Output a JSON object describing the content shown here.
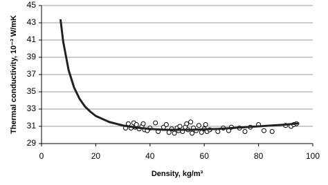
{
  "chart_data": {
    "type": "scatter",
    "xlabel": "Density, kg/m³",
    "ylabel": "Thermal conductivity, 10⁻³ W/mK",
    "xlim": [
      0,
      100
    ],
    "xticks": [
      0,
      20,
      40,
      60,
      80,
      100
    ],
    "ylim": [
      29,
      45
    ],
    "yticks": [
      29,
      31,
      33,
      35,
      37,
      39,
      41,
      43,
      45
    ],
    "grid": true,
    "series": [
      {
        "style": "markers",
        "color": "#000000",
        "x": [
          31,
          32,
          33,
          34,
          34.5,
          35,
          36,
          37,
          37.5,
          38,
          39,
          40,
          42,
          43,
          45,
          46,
          47,
          48,
          49,
          50,
          50.5,
          51,
          52,
          53,
          53.5,
          54,
          55,
          55.5,
          56,
          57,
          58,
          59,
          60,
          60.5,
          61,
          62,
          65,
          67,
          69,
          70,
          73,
          75,
          77,
          80,
          82,
          85,
          90,
          92,
          93,
          94
        ],
        "values": [
          30.8,
          31.3,
          30.8,
          31.4,
          30.9,
          31.2,
          30.7,
          31.0,
          31.3,
          30.6,
          30.5,
          30.8,
          31.4,
          30.4,
          30.9,
          31.2,
          30.3,
          30.7,
          30.2,
          30.8,
          30.5,
          31.0,
          30.4,
          30.9,
          31.3,
          30.6,
          31.5,
          30.2,
          30.8,
          30.5,
          31.1,
          30.3,
          30.7,
          31.2,
          30.4,
          30.6,
          30.4,
          30.8,
          30.5,
          30.9,
          30.8,
          30.4,
          30.9,
          31.2,
          30.5,
          30.4,
          31.1,
          31.0,
          31.2,
          31.3
        ]
      },
      {
        "style": "line",
        "color": "#222222",
        "x": [
          7,
          8,
          10,
          12,
          14,
          16,
          18,
          20,
          25,
          30,
          35,
          40,
          45,
          50,
          55,
          60,
          65,
          70,
          75,
          80,
          85,
          90,
          95
        ],
        "values": [
          43.4,
          40.8,
          37.5,
          35.5,
          34.2,
          33.3,
          32.7,
          32.2,
          31.5,
          31.1,
          30.85,
          30.7,
          30.6,
          30.6,
          30.6,
          30.65,
          30.7,
          30.8,
          30.9,
          31.0,
          31.1,
          31.2,
          31.35
        ]
      }
    ]
  }
}
